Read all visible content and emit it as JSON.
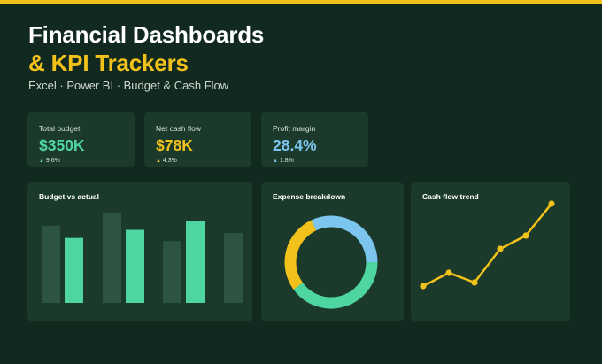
{
  "header": {
    "title_line1": "Financial Dashboards",
    "title_line2": "& KPI Trackers",
    "subtitle": "Excel · Power BI · Budget & Cash Flow"
  },
  "colors": {
    "background": "#11291f",
    "card": "#1b3a2c",
    "accent_yellow": "#f2c21b",
    "accent_green": "#4fd6a0",
    "accent_blue": "#7cc5ee",
    "muted_bar": "#2d5443"
  },
  "kpis": [
    {
      "label": "Total budget",
      "value": "$350K",
      "change_arrow": "▲",
      "change": "9.6%",
      "color": "#4fd6a0"
    },
    {
      "label": "Net cash flow",
      "value": "$78K",
      "change_arrow": "▲",
      "change": "4.3%",
      "color": "#f2c21b"
    },
    {
      "label": "Profit margin",
      "value": "28.4%",
      "change_arrow": "▲",
      "change": "1.8%",
      "color": "#7cc5ee"
    }
  ],
  "charts": {
    "budget": {
      "title": "Budget vs actual"
    },
    "expense": {
      "title": "Expense breakdown"
    },
    "cashflow": {
      "title": "Cash flow trend"
    }
  },
  "chart_data": [
    {
      "type": "bar",
      "title": "Budget vs actual",
      "series": [
        {
          "values": [
            95,
            110,
            76,
            86
          ],
          "color": "#2d5443"
        },
        {
          "values": [
            80,
            90,
            101
          ],
          "color": "#4fd6a0"
        }
      ],
      "ylim": [
        0,
        120
      ]
    },
    {
      "type": "pie",
      "title": "Expense breakdown",
      "slices": [
        {
          "value": 40,
          "color": "#4fd6a0"
        },
        {
          "value": 28,
          "color": "#f2c21b"
        },
        {
          "value": 32,
          "color": "#7cc5ee"
        }
      ]
    },
    {
      "type": "line",
      "title": "Cash flow trend",
      "x": [
        1,
        2,
        3,
        4,
        5,
        6
      ],
      "y": [
        10,
        25,
        14,
        52,
        67,
        103
      ],
      "ylim": [
        0,
        120
      ],
      "color": "#f2c21b"
    }
  ]
}
